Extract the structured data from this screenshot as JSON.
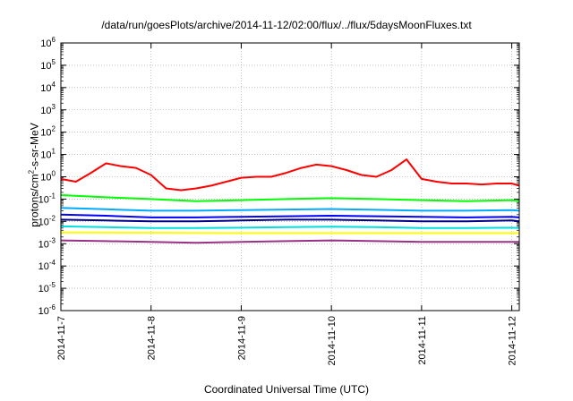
{
  "chart_data": {
    "type": "line",
    "title": "/data/run/goesPlots/archive/2014-11-12/02:00/flux/../flux/5daysMoonFluxes.txt",
    "xlabel": "Coordinated Universal Time (UTC)",
    "ylabel": {
      "base": "protons/cm",
      "sup": "2",
      "rest": "-s-sr-MeV"
    },
    "yscale": "log",
    "ylim": [
      1e-06,
      1000000.0
    ],
    "yticks": [
      {
        "value": 1000000.0,
        "exp": "6"
      },
      {
        "value": 100000.0,
        "exp": "5"
      },
      {
        "value": 10000.0,
        "exp": "4"
      },
      {
        "value": 1000.0,
        "exp": "3"
      },
      {
        "value": 100.0,
        "exp": "2"
      },
      {
        "value": 10.0,
        "exp": "1"
      },
      {
        "value": 1.0,
        "exp": "0"
      },
      {
        "value": 0.1,
        "exp": "-1"
      },
      {
        "value": 0.01,
        "exp": "-2"
      },
      {
        "value": 0.001,
        "exp": "-3"
      },
      {
        "value": 0.0001,
        "exp": "-4"
      },
      {
        "value": 1e-05,
        "exp": "-5"
      },
      {
        "value": 1e-06,
        "exp": "-6"
      }
    ],
    "ytick_base": "10",
    "xlim": [
      "2014-11-07",
      "2014-11-12T02:00"
    ],
    "xticks": [
      "2014-11-7",
      "2014-11-8",
      "2014-11-9",
      "2014-11-10",
      "2014-11-11",
      "2014-11-12"
    ],
    "grid": true,
    "series": [
      {
        "color": "#ff0000",
        "x": [
          "2014-11-07T00:00",
          "2014-11-07T04:00",
          "2014-11-07T08:00",
          "2014-11-07T12:00",
          "2014-11-07T16:00",
          "2014-11-07T20:00",
          "2014-11-08T00:00",
          "2014-11-08T04:00",
          "2014-11-08T08:00",
          "2014-11-08T12:00",
          "2014-11-08T16:00",
          "2014-11-08T20:00",
          "2014-11-09T00:00",
          "2014-11-09T04:00",
          "2014-11-09T08:00",
          "2014-11-09T12:00",
          "2014-11-09T16:00",
          "2014-11-09T20:00",
          "2014-11-10T00:00",
          "2014-11-10T04:00",
          "2014-11-10T08:00",
          "2014-11-10T12:00",
          "2014-11-10T16:00",
          "2014-11-10T20:00",
          "2014-11-11T00:00",
          "2014-11-11T04:00",
          "2014-11-11T08:00",
          "2014-11-11T12:00",
          "2014-11-11T16:00",
          "2014-11-11T20:00",
          "2014-11-12T00:00",
          "2014-11-12T02:00"
        ],
        "y": [
          0.8,
          0.6,
          1.5,
          4,
          3,
          2.5,
          1.2,
          0.3,
          0.25,
          0.3,
          0.4,
          0.6,
          0.9,
          1.0,
          1.0,
          1.5,
          2.5,
          3.5,
          3.0,
          2.0,
          1.2,
          1.0,
          2.0,
          6.0,
          0.8,
          0.6,
          0.5,
          0.5,
          0.45,
          0.5,
          0.5,
          0.4
        ]
      },
      {
        "color": "#00ff00",
        "x": [
          "2014-11-07T00:00",
          "2014-11-07T12:00",
          "2014-11-08T00:00",
          "2014-11-08T12:00",
          "2014-11-09T00:00",
          "2014-11-09T12:00",
          "2014-11-10T00:00",
          "2014-11-10T12:00",
          "2014-11-11T00:00",
          "2014-11-11T12:00",
          "2014-11-12T00:00",
          "2014-11-12T02:00"
        ],
        "y": [
          0.15,
          0.12,
          0.1,
          0.08,
          0.09,
          0.1,
          0.11,
          0.1,
          0.09,
          0.08,
          0.09,
          0.08
        ]
      },
      {
        "color": "#0000ff",
        "x": [
          "2014-11-07T00:00",
          "2014-11-07T12:00",
          "2014-11-08T00:00",
          "2014-11-08T12:00",
          "2014-11-09T00:00",
          "2014-11-09T12:00",
          "2014-11-10T00:00",
          "2014-11-10T12:00",
          "2014-11-11T00:00",
          "2014-11-11T12:00",
          "2014-11-12T00:00",
          "2014-11-12T02:00"
        ],
        "y": [
          0.02,
          0.018,
          0.015,
          0.015,
          0.016,
          0.017,
          0.018,
          0.017,
          0.016,
          0.015,
          0.016,
          0.015
        ]
      },
      {
        "color": "#00aaff",
        "x": [
          "2014-11-07T00:00",
          "2014-11-07T12:00",
          "2014-11-08T00:00",
          "2014-11-08T12:00",
          "2014-11-09T00:00",
          "2014-11-09T12:00",
          "2014-11-10T00:00",
          "2014-11-10T12:00",
          "2014-11-11T00:00",
          "2014-11-11T12:00",
          "2014-11-12T00:00",
          "2014-11-12T02:00"
        ],
        "y": [
          0.04,
          0.035,
          0.03,
          0.03,
          0.032,
          0.034,
          0.036,
          0.033,
          0.03,
          0.03,
          0.032,
          0.03
        ]
      },
      {
        "color": "#000088",
        "x": [
          "2014-11-07T00:00",
          "2014-11-07T12:00",
          "2014-11-08T00:00",
          "2014-11-08T12:00",
          "2014-11-09T00:00",
          "2014-11-09T12:00",
          "2014-11-10T00:00",
          "2014-11-10T12:00",
          "2014-11-11T00:00",
          "2014-11-11T12:00",
          "2014-11-12T00:00",
          "2014-11-12T02:00"
        ],
        "y": [
          0.012,
          0.011,
          0.01,
          0.01,
          0.011,
          0.012,
          0.012,
          0.011,
          0.01,
          0.01,
          0.011,
          0.01
        ]
      },
      {
        "color": "#00dddd",
        "x": [
          "2014-11-07T00:00",
          "2014-11-07T12:00",
          "2014-11-08T00:00",
          "2014-11-08T12:00",
          "2014-11-09T00:00",
          "2014-11-09T12:00",
          "2014-11-10T00:00",
          "2014-11-10T12:00",
          "2014-11-11T00:00",
          "2014-11-11T12:00",
          "2014-11-12T00:00",
          "2014-11-12T02:00"
        ],
        "y": [
          0.006,
          0.0055,
          0.005,
          0.005,
          0.0052,
          0.0055,
          0.0058,
          0.0055,
          0.005,
          0.005,
          0.0052,
          0.005
        ]
      },
      {
        "color": "#ffff00",
        "x": [
          "2014-11-07T00:00",
          "2014-11-08T00:00",
          "2014-11-09T00:00",
          "2014-11-10T00:00",
          "2014-11-11T00:00",
          "2014-11-12T00:00",
          "2014-11-12T02:00"
        ],
        "y": [
          0.0032,
          0.0031,
          0.003,
          0.003,
          0.003,
          0.003,
          0.003
        ]
      },
      {
        "color": "#993388",
        "x": [
          "2014-11-07T00:00",
          "2014-11-07T12:00",
          "2014-11-08T00:00",
          "2014-11-08T12:00",
          "2014-11-09T00:00",
          "2014-11-09T12:00",
          "2014-11-10T00:00",
          "2014-11-10T12:00",
          "2014-11-11T00:00",
          "2014-11-11T12:00",
          "2014-11-12T00:00",
          "2014-11-12T02:00"
        ],
        "y": [
          0.0014,
          0.0013,
          0.0012,
          0.0011,
          0.0012,
          0.0013,
          0.0014,
          0.0013,
          0.0012,
          0.0012,
          0.0012,
          0.0012
        ]
      }
    ]
  }
}
